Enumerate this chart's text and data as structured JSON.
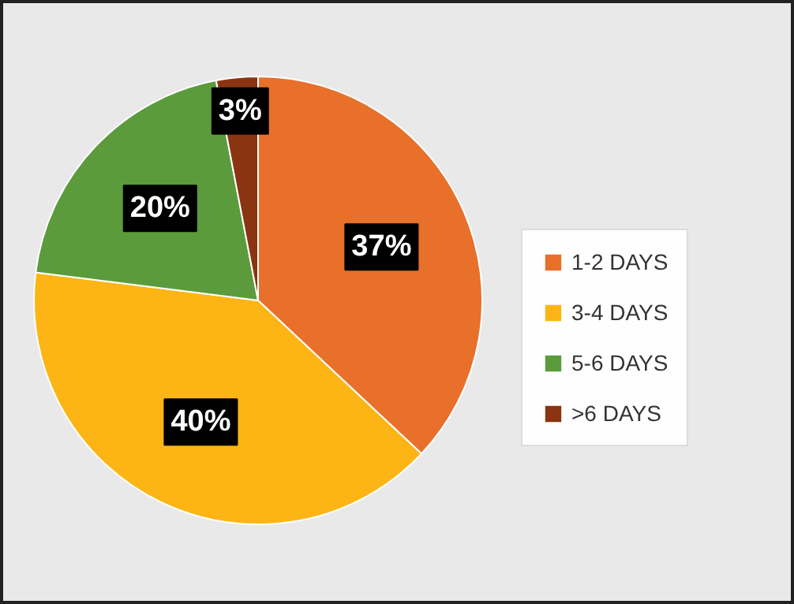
{
  "chart_data": {
    "type": "pie",
    "categories": [
      "1-2 DAYS",
      "3-4 DAYS",
      "5-6 DAYS",
      ">6 DAYS"
    ],
    "values": [
      37,
      40,
      20,
      3
    ],
    "colors": [
      "#e8702a",
      "#fdb515",
      "#5b9b3c",
      "#8a3412"
    ],
    "value_labels": [
      "37%",
      "40%",
      "20%",
      "3%"
    ],
    "legend": "right"
  }
}
